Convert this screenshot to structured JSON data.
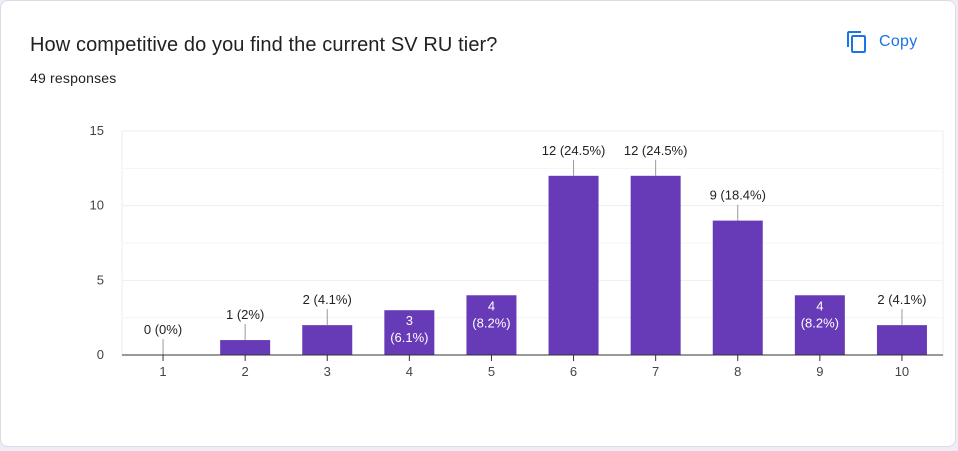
{
  "card": {
    "title": "How competitive do you find the current SV RU tier?",
    "responses": "49 responses",
    "copy_label": "Copy",
    "copy_icon": "copy-icon",
    "accent_color": "#1a73e8"
  },
  "chart_data": {
    "type": "bar",
    "categories": [
      "1",
      "2",
      "3",
      "4",
      "5",
      "6",
      "7",
      "8",
      "9",
      "10"
    ],
    "values": [
      0,
      1,
      2,
      3,
      4,
      12,
      12,
      9,
      4,
      2
    ],
    "percents": [
      "0%",
      "2%",
      "4.1%",
      "6.1%",
      "8.2%",
      "24.5%",
      "24.5%",
      "18.4%",
      "8.2%",
      "4.1%"
    ],
    "data_labels": [
      [
        "0 (0%)"
      ],
      [
        "1 (2%)"
      ],
      [
        "2 (4.1%)"
      ],
      [
        "3",
        "(6.1%)"
      ],
      [
        "4",
        "(8.2%)"
      ],
      [
        "12 (24.5%)"
      ],
      [
        "12 (24.5%)"
      ],
      [
        "9 (18.4%)"
      ],
      [
        "4",
        "(8.2%)"
      ],
      [
        "2 (4.1%)"
      ]
    ],
    "label_inside": [
      false,
      false,
      false,
      true,
      true,
      false,
      false,
      false,
      true,
      false
    ],
    "yticks": [
      "0",
      "5",
      "10",
      "15"
    ],
    "ylim": [
      0,
      15
    ],
    "bar_color": "#673ab7",
    "grid": true
  }
}
